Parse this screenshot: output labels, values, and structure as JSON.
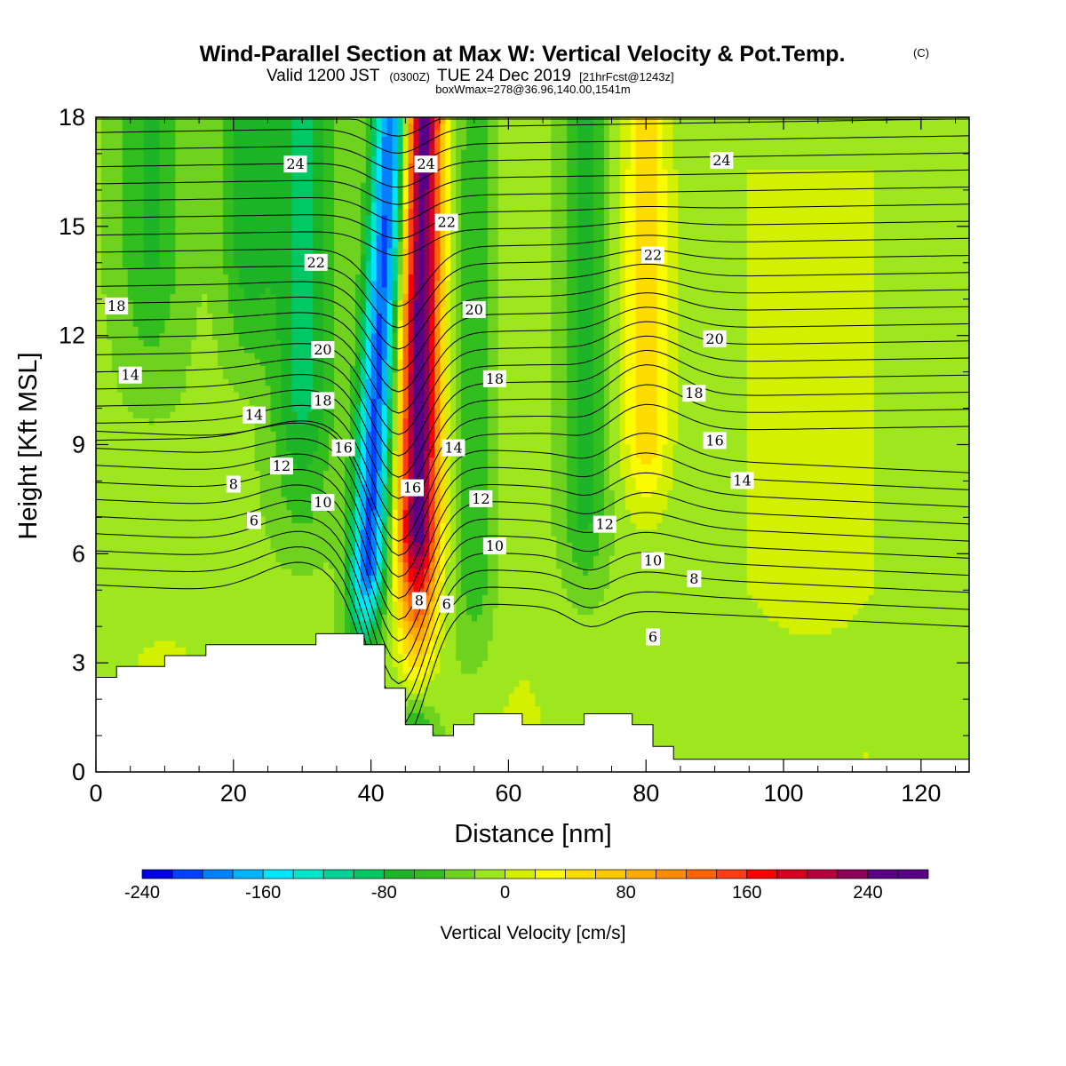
{
  "header": {
    "title": "Wind-Parallel Section at Max W: Vertical Velocity & Pot.Temp.",
    "copyright": "(C)",
    "subtitle_main": "Valid 1200 JST",
    "subtitle_z": "(0300Z)",
    "subtitle_date": "TUE 24 Dec 2019",
    "subtitle_fcst": "[21hrFcst@1243z]",
    "boxline": "boxWmax=278@36.96,140.00,1541m"
  },
  "colors": {
    "palette": [
      "#0000e6",
      "#0040ff",
      "#0080ff",
      "#00b4ff",
      "#00e6ff",
      "#00e6c8",
      "#00d296",
      "#00c864",
      "#1eb428",
      "#32be1e",
      "#6ed21e",
      "#9ee61e",
      "#d2f000",
      "#fafa00",
      "#ffdc00",
      "#ffc800",
      "#ffaa00",
      "#ff8c00",
      "#ff6400",
      "#ff3c14",
      "#ff0000",
      "#d70020",
      "#b4003c",
      "#8c005a",
      "#5a0087"
    ],
    "background": "#7dd214",
    "terrain": "#ffffff"
  },
  "chart_data": {
    "type": "heatmap",
    "xlabel": "Distance [nm]",
    "ylabel": "Height [Kft MSL]",
    "xlim": [
      0,
      127
    ],
    "ylim": [
      0,
      18
    ],
    "xticks": [
      0,
      20,
      40,
      60,
      80,
      100,
      120
    ],
    "yticks": [
      0,
      3,
      6,
      9,
      12,
      15,
      18
    ],
    "colorbar": {
      "label": "Vertical Velocity [cm/s]",
      "min": -240,
      "max": 280,
      "bins": 26,
      "ticks": [
        -240,
        -160,
        -80,
        0,
        80,
        160,
        240
      ]
    },
    "terrain_kft": [
      [
        0,
        2.6
      ],
      [
        3,
        2.6
      ],
      [
        3,
        2.9
      ],
      [
        6,
        2.9
      ],
      [
        6,
        2.9
      ],
      [
        10,
        2.9
      ],
      [
        10,
        3.2
      ],
      [
        16,
        3.2
      ],
      [
        16,
        3.5
      ],
      [
        32,
        3.5
      ],
      [
        32,
        3.8
      ],
      [
        39,
        3.8
      ],
      [
        39,
        3.5
      ],
      [
        42,
        3.5
      ],
      [
        42,
        2.3
      ],
      [
        45,
        2.3
      ],
      [
        45,
        1.3
      ],
      [
        49,
        1.3
      ],
      [
        49,
        1.0
      ],
      [
        52,
        1.0
      ],
      [
        52,
        1.3
      ],
      [
        55,
        1.3
      ],
      [
        55,
        1.6
      ],
      [
        62,
        1.6
      ],
      [
        62,
        1.3
      ],
      [
        71,
        1.3
      ],
      [
        71,
        1.6
      ],
      [
        78,
        1.6
      ],
      [
        78,
        1.3
      ],
      [
        81,
        1.3
      ],
      [
        81,
        0.7
      ],
      [
        84,
        0.7
      ],
      [
        84,
        0.35
      ],
      [
        127,
        0.35
      ]
    ],
    "updraft_axis_x": 47,
    "downdraft_axis_x": 40,
    "max_updraft_cm_s": 278,
    "min_downdraft_cm_s": -200,
    "theta_contour_labels": [
      {
        "text": "24",
        "x": 29,
        "y": 16.7
      },
      {
        "text": "24",
        "x": 48,
        "y": 16.7
      },
      {
        "text": "24",
        "x": 91,
        "y": 16.8
      },
      {
        "text": "22",
        "x": 32,
        "y": 14.0
      },
      {
        "text": "22",
        "x": 51,
        "y": 15.1
      },
      {
        "text": "22",
        "x": 81,
        "y": 14.2
      },
      {
        "text": "20",
        "x": 33,
        "y": 11.6
      },
      {
        "text": "20",
        "x": 55,
        "y": 12.7
      },
      {
        "text": "20",
        "x": 90,
        "y": 11.9
      },
      {
        "text": "18",
        "x": 3,
        "y": 12.8
      },
      {
        "text": "18",
        "x": 33,
        "y": 10.2
      },
      {
        "text": "18",
        "x": 58,
        "y": 10.8
      },
      {
        "text": "18",
        "x": 87,
        "y": 10.4
      },
      {
        "text": "16",
        "x": 36,
        "y": 8.9
      },
      {
        "text": "16",
        "x": 46,
        "y": 7.8
      },
      {
        "text": "16",
        "x": 90,
        "y": 9.1
      },
      {
        "text": "14",
        "x": 5,
        "y": 10.9
      },
      {
        "text": "14",
        "x": 23,
        "y": 9.8
      },
      {
        "text": "14",
        "x": 52,
        "y": 8.9
      },
      {
        "text": "14",
        "x": 94,
        "y": 8.0
      },
      {
        "text": "12",
        "x": 27,
        "y": 8.4
      },
      {
        "text": "12",
        "x": 56,
        "y": 7.5
      },
      {
        "text": "12",
        "x": 74,
        "y": 6.8
      },
      {
        "text": "10",
        "x": 33,
        "y": 7.4
      },
      {
        "text": "10",
        "x": 58,
        "y": 6.2
      },
      {
        "text": "10",
        "x": 81,
        "y": 5.8
      },
      {
        "text": "8",
        "x": 20,
        "y": 7.9
      },
      {
        "text": "8",
        "x": 47,
        "y": 4.7
      },
      {
        "text": "8",
        "x": 87,
        "y": 5.3
      },
      {
        "text": "6",
        "x": 23,
        "y": 6.9
      },
      {
        "text": "6",
        "x": 51,
        "y": 4.6
      },
      {
        "text": "6",
        "x": 81,
        "y": 3.7
      }
    ]
  }
}
